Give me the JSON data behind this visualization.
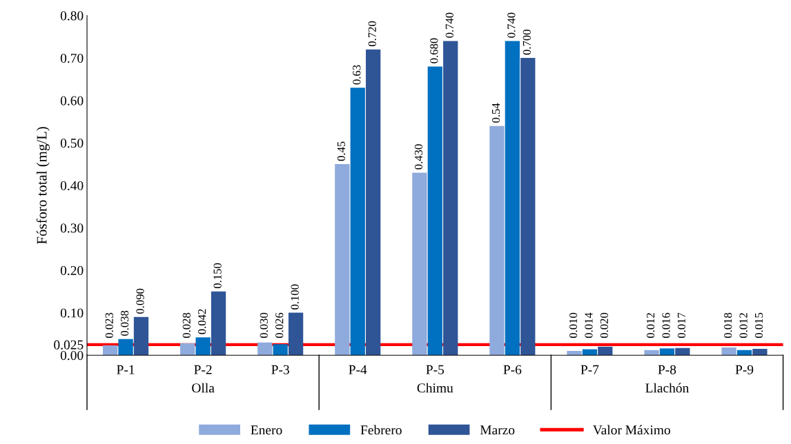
{
  "chart_data": {
    "type": "bar",
    "ylabel": "Fósforo total (mg/L)",
    "categories": [
      "P-1",
      "P-2",
      "P-3",
      "P-4",
      "P-5",
      "P-6",
      "P-7",
      "P-8",
      "P-9"
    ],
    "series": [
      {
        "name": "Enero",
        "color": "#8faadc",
        "values": [
          0.023,
          0.028,
          0.03,
          0.45,
          0.43,
          0.54,
          0.01,
          0.012,
          0.018
        ],
        "value_labels": [
          "0.023",
          "0.028",
          "0.030",
          "0.45",
          "0.430",
          "0.54",
          "0.010",
          "0.012",
          "0.018"
        ]
      },
      {
        "name": "Febrero",
        "color": "#0070c0",
        "values": [
          0.038,
          0.042,
          0.026,
          0.63,
          0.68,
          0.74,
          0.014,
          0.016,
          0.012
        ],
        "value_labels": [
          "0.038",
          "0.042",
          "0.026",
          "0.63",
          "0.680",
          "0.740",
          "0.014",
          "0.016",
          "0.012"
        ]
      },
      {
        "name": "Marzo",
        "color": "#2f5597",
        "values": [
          0.09,
          0.15,
          0.1,
          0.72,
          0.74,
          0.7,
          0.02,
          0.017,
          0.015
        ],
        "value_labels": [
          "0.090",
          "0.150",
          "0.100",
          "0.720",
          "0.740",
          "0.700",
          "0.020",
          "0.017",
          "0.015"
        ]
      }
    ],
    "ref_lines": [
      {
        "axis": "y",
        "value": 0.025,
        "label": "Valor Máximo",
        "color": "#ff0000"
      }
    ],
    "annotations": [
      "Olla",
      "Chimu",
      "Llachón"
    ],
    "ylim": [
      0,
      0.8
    ],
    "yticks": [
      {
        "value": 0,
        "label": "0.00"
      },
      0.025,
      {
        "value": 0.1,
        "label": "0.10"
      },
      {
        "value": 0.2,
        "label": "0.20"
      },
      {
        "value": 0.3,
        "label": "0.30"
      },
      {
        "value": 0.4,
        "label": "0.40"
      },
      {
        "value": 0.5,
        "label": "0.50"
      },
      {
        "value": 0.6,
        "label": "0.60"
      },
      {
        "value": 0.7,
        "label": "0.70"
      },
      {
        "value": 0.8,
        "label": "0.80"
      }
    ],
    "grid": false,
    "legend": "bottom"
  }
}
